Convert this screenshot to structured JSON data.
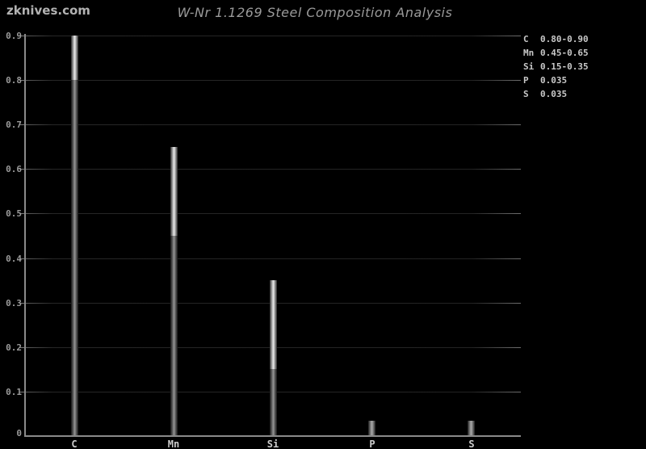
{
  "source": "zknives.com",
  "title": "W-Nr 1.1269 Steel Composition Analysis",
  "chart_data": {
    "type": "bar",
    "title": "W-Nr 1.1269 Steel Composition Analysis",
    "source_watermark": "zknives.com",
    "categories": [
      "C",
      "Mn",
      "Si",
      "P",
      "S"
    ],
    "elements": [
      {
        "symbol": "C",
        "min": 0.8,
        "max": 0.9,
        "range_label": "0.80-0.90"
      },
      {
        "symbol": "Mn",
        "min": 0.45,
        "max": 0.65,
        "range_label": "0.45-0.65"
      },
      {
        "symbol": "Si",
        "min": 0.15,
        "max": 0.35,
        "range_label": "0.15-0.35"
      },
      {
        "symbol": "P",
        "min": null,
        "max": 0.035,
        "range_label": "0.035"
      },
      {
        "symbol": "S",
        "min": null,
        "max": 0.035,
        "range_label": "0.035"
      }
    ],
    "ylim": [
      0,
      0.9
    ],
    "ytick_labels": [
      "0.9",
      "0.8",
      "0.7",
      "0.6",
      "0.5",
      "0.4",
      "0.3",
      "0.2",
      "0.1",
      "0"
    ],
    "grid": "horizontal",
    "legend_position": "top-right",
    "colors": {
      "background": "#000000",
      "bar_base_center": "#979797",
      "bar_range_center": "#ededed",
      "gridline": "#262626",
      "axis": "#8a8a8a",
      "tick_text": "#9a9a9a",
      "category_text": "#cccccc",
      "legend_text": "#c8c8c8",
      "title_text": "#9a9a9a"
    }
  }
}
